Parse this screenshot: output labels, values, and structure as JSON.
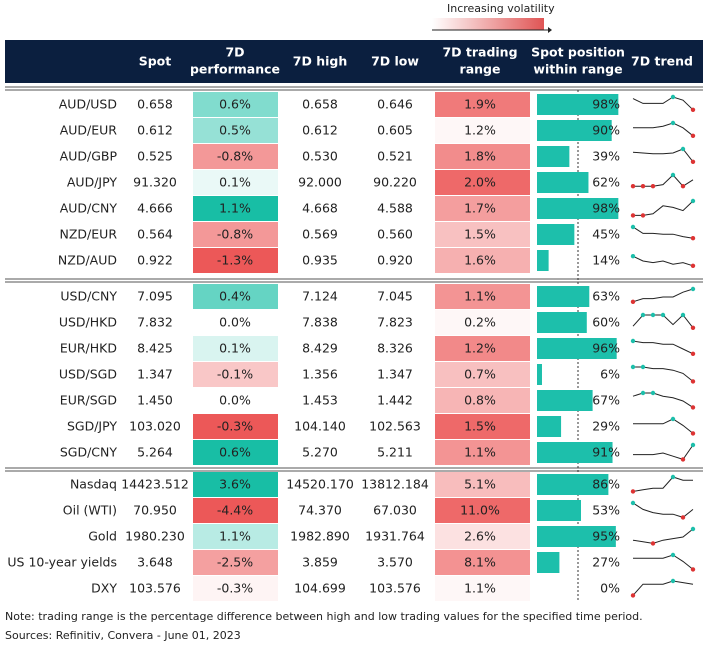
{
  "legend": "Increasing volatility",
  "headers": [
    [
      "Spot"
    ],
    [
      "7D",
      "performance"
    ],
    [
      "7D high"
    ],
    [
      "7D low"
    ],
    [
      "7D trading",
      "range"
    ],
    [
      "Spot position",
      "within range"
    ],
    [
      "7D trend"
    ]
  ],
  "groups": [
    [
      {
        "name": "AUD/USD",
        "spot": "0.658",
        "perf": {
          "value": 0.6,
          "label": "0.6%"
        },
        "high": "0.658",
        "low": "0.646",
        "range": {
          "value": 1.9,
          "label": "1.9%"
        },
        "position": {
          "value": 98,
          "label": "98%"
        },
        "trend": [
          90,
          60,
          60,
          60,
          100,
          80,
          20
        ]
      },
      {
        "name": "AUD/EUR",
        "spot": "0.612",
        "perf": {
          "value": 0.5,
          "label": "0.5%"
        },
        "high": "0.612",
        "low": "0.605",
        "range": {
          "value": 1.2,
          "label": "1.2%"
        },
        "position": {
          "value": 90,
          "label": "90%"
        },
        "trend": [
          70,
          70,
          70,
          80,
          100,
          70,
          20
        ]
      },
      {
        "name": "AUD/GBP",
        "spot": "0.525",
        "perf": {
          "value": -0.8,
          "label": "-0.8%"
        },
        "high": "0.530",
        "low": "0.521",
        "range": {
          "value": 1.8,
          "label": "1.8%"
        },
        "position": {
          "value": 39,
          "label": "39%"
        },
        "trend": [
          80,
          75,
          70,
          70,
          75,
          100,
          20
        ]
      },
      {
        "name": "AUD/JPY",
        "spot": "91.320",
        "perf": {
          "value": 0.1,
          "label": "0.1%"
        },
        "high": "92.000",
        "low": "90.220",
        "range": {
          "value": 2.0,
          "label": "2.0%"
        },
        "position": {
          "value": 62,
          "label": "62%"
        },
        "trend": [
          30,
          30,
          30,
          40,
          100,
          30,
          70
        ]
      },
      {
        "name": "AUD/CNY",
        "spot": "4.666",
        "perf": {
          "value": 1.1,
          "label": "1.1%"
        },
        "high": "4.668",
        "low": "4.588",
        "range": {
          "value": 1.7,
          "label": "1.7%"
        },
        "position": {
          "value": 98,
          "label": "98%"
        },
        "trend": [
          10,
          10,
          20,
          70,
          60,
          40,
          100
        ]
      },
      {
        "name": "NZD/EUR",
        "spot": "0.564",
        "perf": {
          "value": -0.8,
          "label": "-0.8%"
        },
        "high": "0.569",
        "low": "0.560",
        "range": {
          "value": 1.5,
          "label": "1.5%"
        },
        "position": {
          "value": 45,
          "label": "45%"
        },
        "trend": [
          100,
          60,
          60,
          55,
          55,
          40,
          30
        ]
      },
      {
        "name": "NZD/AUD",
        "spot": "0.922",
        "perf": {
          "value": -1.3,
          "label": "-1.3%"
        },
        "high": "0.935",
        "low": "0.920",
        "range": {
          "value": 1.6,
          "label": "1.6%"
        },
        "position": {
          "value": 14,
          "label": "14%"
        },
        "trend": [
          80,
          50,
          40,
          50,
          30,
          40,
          20
        ]
      }
    ],
    [
      {
        "name": "USD/CNY",
        "spot": "7.095",
        "perf": {
          "value": 0.4,
          "label": "0.4%"
        },
        "high": "7.124",
        "low": "7.045",
        "range": {
          "value": 1.1,
          "label": "1.1%"
        },
        "position": {
          "value": 63,
          "label": "63%"
        },
        "trend": [
          20,
          40,
          40,
          50,
          50,
          80,
          100
        ]
      },
      {
        "name": "USD/HKD",
        "spot": "7.832",
        "perf": {
          "value": 0.0,
          "label": "0.0%"
        },
        "high": "7.838",
        "low": "7.823",
        "range": {
          "value": 0.2,
          "label": "0.2%"
        },
        "position": {
          "value": 60,
          "label": "60%"
        },
        "trend": [
          30,
          100,
          100,
          100,
          40,
          100,
          20
        ]
      },
      {
        "name": "EUR/HKD",
        "spot": "8.425",
        "perf": {
          "value": 0.1,
          "label": "0.1%"
        },
        "high": "8.429",
        "low": "8.326",
        "range": {
          "value": 1.2,
          "label": "1.2%"
        },
        "position": {
          "value": 96,
          "label": "96%"
        },
        "trend": [
          100,
          90,
          90,
          80,
          80,
          50,
          20
        ]
      },
      {
        "name": "USD/SGD",
        "spot": "1.347",
        "perf": {
          "value": -0.1,
          "label": "-0.1%"
        },
        "high": "1.356",
        "low": "1.347",
        "range": {
          "value": 0.7,
          "label": "0.7%"
        },
        "position": {
          "value": 6,
          "label": "6%"
        },
        "trend": [
          100,
          100,
          90,
          90,
          80,
          60,
          10
        ]
      },
      {
        "name": "EUR/SGD",
        "spot": "1.450",
        "perf": {
          "value": 0.0,
          "label": "0.0%"
        },
        "high": "1.453",
        "low": "1.442",
        "range": {
          "value": 0.8,
          "label": "0.8%"
        },
        "position": {
          "value": 67,
          "label": "67%"
        },
        "trend": [
          80,
          100,
          100,
          80,
          70,
          50,
          10
        ]
      },
      {
        "name": "SGD/JPY",
        "spot": "103.020",
        "perf": {
          "value": -0.3,
          "label": "-0.3%"
        },
        "high": "104.140",
        "low": "102.563",
        "range": {
          "value": 1.5,
          "label": "1.5%"
        },
        "position": {
          "value": 29,
          "label": "29%"
        },
        "trend": [
          70,
          70,
          70,
          70,
          100,
          60,
          10
        ]
      },
      {
        "name": "SGD/CNY",
        "spot": "5.264",
        "perf": {
          "value": 0.6,
          "label": "0.6%"
        },
        "high": "5.270",
        "low": "5.211",
        "range": {
          "value": 1.1,
          "label": "1.1%"
        },
        "position": {
          "value": 91,
          "label": "91%"
        },
        "trend": [
          40,
          40,
          40,
          50,
          30,
          10,
          100
        ]
      }
    ],
    [
      {
        "name": "Nasdaq",
        "spot": "14423.512",
        "perf": {
          "value": 3.6,
          "label": "3.6%"
        },
        "high": "14520.170",
        "low": "13812.184",
        "range": {
          "value": 5.1,
          "label": "5.1%"
        },
        "position": {
          "value": 86,
          "label": "86%"
        },
        "trend": [
          10,
          20,
          30,
          30,
          100,
          80,
          80
        ]
      },
      {
        "name": "Oil (WTI)",
        "spot": "70.950",
        "perf": {
          "value": -4.4,
          "label": "-4.4%"
        },
        "high": "74.370",
        "low": "67.030",
        "range": {
          "value": 11.0,
          "label": "11.0%"
        },
        "position": {
          "value": 53,
          "label": "53%"
        },
        "trend": [
          100,
          60,
          40,
          30,
          30,
          10,
          60
        ]
      },
      {
        "name": "Gold",
        "spot": "1980.230",
        "perf": {
          "value": 1.1,
          "label": "1.1%"
        },
        "high": "1982.890",
        "low": "1931.764",
        "range": {
          "value": 2.6,
          "label": "2.6%"
        },
        "position": {
          "value": 95,
          "label": "95%"
        },
        "trend": [
          30,
          20,
          10,
          30,
          40,
          50,
          100
        ]
      },
      {
        "name": "US 10-year yields",
        "spot": "3.648",
        "perf": {
          "value": -2.5,
          "label": "-2.5%"
        },
        "high": "3.859",
        "low": "3.570",
        "range": {
          "value": 8.1,
          "label": "8.1%"
        },
        "position": {
          "value": 27,
          "label": "27%"
        },
        "trend": [
          80,
          80,
          80,
          80,
          100,
          60,
          10
        ]
      },
      {
        "name": "DXY",
        "spot": "103.576",
        "perf": {
          "value": -0.3,
          "label": "-0.3%"
        },
        "high": "104.699",
        "low": "103.576",
        "range": {
          "value": 1.1,
          "label": "1.1%"
        },
        "position": {
          "value": 0,
          "label": "0%"
        },
        "trend": [
          10,
          80,
          80,
          80,
          100,
          90,
          80
        ]
      }
    ]
  ],
  "note": "Note: trading range is the percentage difference between high and low trading values for the specified time period.",
  "sources": "Sources: Refinitiv, Convera - June 01, 2023"
}
